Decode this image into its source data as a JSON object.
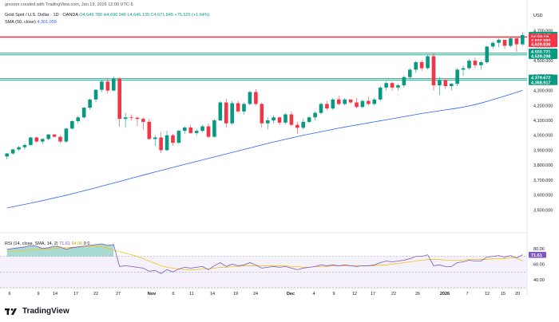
{
  "header": {
    "credit": "grezerx created with TradingView.com, Jan 19, 2026 12:00 UTC-5",
    "symbol": "Gold Spot / U.S. Dollar · 1D · OANDA",
    "ohlc": "O4,649.780 H4,690.940 L4,646.135 C4,671.845 +75.525 (+1.64%)",
    "sma_label": "SMA (50, close)",
    "sma_value": "4,301.059",
    "rsi_label": "RSI (14, close, SMA, 14, 2)",
    "rsi_value": "71.61",
    "rsi_sma_value": "64.06",
    "rsi_extra": "0  0",
    "currency": "USD"
  },
  "brand": {
    "name": "TradingView",
    "logo": "tv-logo-icon"
  },
  "chart_data": [
    {
      "type": "candlestick",
      "series": [
        {
          "name": "Gold Spot / U.S. Dollar",
          "candles": [
            [
              3858,
              3880,
              3840,
              3878
            ],
            [
              3878,
              3910,
              3870,
              3905
            ],
            [
              3905,
              3930,
              3895,
              3920
            ],
            [
              3920,
              3945,
              3905,
              3935
            ],
            [
              3935,
              3990,
              3930,
              3985
            ],
            [
              3985,
              3990,
              3950,
              3958
            ],
            [
              3958,
              3980,
              3940,
              3975
            ],
            [
              3975,
              4010,
              3965,
              4005
            ],
            [
              4005,
              4010,
              3985,
              3990
            ],
            [
              3990,
              4000,
              3950,
              3958
            ],
            [
              3958,
              4050,
              3950,
              4045
            ],
            [
              4045,
              4100,
              4040,
              4095
            ],
            [
              4095,
              4130,
              4080,
              4120
            ],
            [
              4120,
              4190,
              4110,
              4185
            ],
            [
              4185,
              4245,
              4170,
              4240
            ],
            [
              4240,
              4310,
              4220,
              4305
            ],
            [
              4305,
              4370,
              4290,
              4360
            ],
            [
              4360,
              4380,
              4280,
              4300
            ],
            [
              4300,
              4395,
              4295,
              4380
            ],
            [
              4380,
              4390,
              4060,
              4110
            ],
            [
              4110,
              4150,
              4050,
              4120
            ],
            [
              4120,
              4140,
              4100,
              4118
            ],
            [
              4118,
              4125,
              4060,
              4110
            ],
            [
              4110,
              4120,
              4040,
              4090
            ],
            [
              4090,
              4110,
              3970,
              3975
            ],
            [
              3975,
              4000,
              3930,
              3985
            ],
            [
              3985,
              4020,
              3880,
              3900
            ],
            [
              3900,
              4030,
              3895,
              4000
            ],
            [
              4000,
              4010,
              3930,
              3950
            ],
            [
              3950,
              4040,
              3940,
              4030
            ],
            [
              4030,
              4060,
              4010,
              4052
            ],
            [
              4052,
              4070,
              4010,
              4015
            ],
            [
              4015,
              4040,
              4000,
              4030
            ],
            [
              4030,
              4070,
              4020,
              4060
            ],
            [
              4060,
              4080,
              3980,
              3990
            ],
            [
              3990,
              4110,
              3985,
              4100
            ],
            [
              4100,
              4230,
              4095,
              4220
            ],
            [
              4220,
              4245,
              4050,
              4080
            ],
            [
              4080,
              4230,
              4070,
              4215
            ],
            [
              4215,
              4230,
              4150,
              4160
            ],
            [
              4160,
              4220,
              4140,
              4210
            ],
            [
              4210,
              4300,
              4200,
              4290
            ],
            [
              4290,
              4310,
              4200,
              4210
            ],
            [
              4210,
              4220,
              4050,
              4080
            ],
            [
              4080,
              4120,
              4040,
              4100
            ],
            [
              4100,
              4135,
              4080,
              4120
            ],
            [
              4120,
              4125,
              4070,
              4085
            ],
            [
              4085,
              4150,
              4075,
              4140
            ],
            [
              4140,
              4160,
              4060,
              4070
            ],
            [
              4070,
              4090,
              4010,
              4050
            ],
            [
              4050,
              4110,
              4040,
              4090
            ],
            [
              4090,
              4130,
              4080,
              4120
            ],
            [
              4120,
              4160,
              4100,
              4150
            ],
            [
              4150,
              4220,
              4140,
              4210
            ],
            [
              4210,
              4230,
              4170,
              4180
            ],
            [
              4180,
              4250,
              4170,
              4240
            ],
            [
              4240,
              4265,
              4200,
              4210
            ],
            [
              4210,
              4250,
              4200,
              4240
            ],
            [
              4240,
              4230,
              4210,
              4220
            ],
            [
              4220,
              4250,
              4180,
              4190
            ],
            [
              4190,
              4240,
              4180,
              4230
            ],
            [
              4230,
              4260,
              4200,
              4210
            ],
            [
              4210,
              4250,
              4200,
              4240
            ],
            [
              4240,
              4330,
              4230,
              4320
            ],
            [
              4320,
              4360,
              4300,
              4350
            ],
            [
              4350,
              4360,
              4300,
              4320
            ],
            [
              4320,
              4345,
              4300,
              4335
            ],
            [
              4335,
              4400,
              4320,
              4390
            ],
            [
              4390,
              4450,
              4380,
              4440
            ],
            [
              4440,
              4500,
              4420,
              4490
            ],
            [
              4490,
              4505,
              4430,
              4450
            ],
            [
              4450,
              4540,
              4440,
              4530
            ],
            [
              4530,
              4550,
              4300,
              4335
            ],
            [
              4335,
              4390,
              4270,
              4370
            ],
            [
              4370,
              4380,
              4310,
              4330
            ],
            [
              4330,
              4350,
              4300,
              4345
            ],
            [
              4345,
              4450,
              4330,
              4440
            ],
            [
              4440,
              4470,
              4400,
              4450
            ],
            [
              4450,
              4510,
              4440,
              4500
            ],
            [
              4500,
              4520,
              4450,
              4470
            ],
            [
              4470,
              4500,
              4440,
              4490
            ],
            [
              4490,
              4600,
              4480,
              4595
            ],
            [
              4595,
              4630,
              4580,
              4620
            ],
            [
              4620,
              4650,
              4590,
              4640
            ],
            [
              4640,
              4640,
              4580,
              4600
            ],
            [
              4600,
              4660,
              4590,
              4650
            ],
            [
              4650,
              4645,
              4560,
              4610
            ],
            [
              4610,
              4690,
              4600,
              4672
            ]
          ]
        },
        {
          "name": "SMA (50, close)",
          "points": [
            3513,
            3521,
            3529,
            3537,
            3545,
            3553,
            3562,
            3571,
            3580,
            3589,
            3598,
            3608,
            3618,
            3628,
            3638,
            3648,
            3659,
            3669,
            3680,
            3690,
            3701,
            3712,
            3722,
            3733,
            3743,
            3754,
            3764,
            3775,
            3785,
            3795,
            3805,
            3815,
            3825,
            3835,
            3845,
            3855,
            3865,
            3875,
            3885,
            3895,
            3905,
            3915,
            3925,
            3935,
            3945,
            3955,
            3964,
            3973,
            3982,
            3991,
            4000,
            4008,
            4016,
            4024,
            4032,
            4040,
            4048,
            4055,
            4062,
            4069,
            4076,
            4083,
            4090,
            4097,
            4104,
            4111,
            4118,
            4125,
            4132,
            4139,
            4146,
            4152,
            4158,
            4164,
            4170,
            4176,
            4182,
            4189,
            4197,
            4206,
            4216,
            4227,
            4239,
            4251,
            4263,
            4275,
            4288,
            4301
          ]
        }
      ],
      "x_tick_labels": [
        "6",
        "9",
        "14",
        "17",
        "22",
        "27",
        "Nov",
        "6",
        "11",
        "14",
        "19",
        "24",
        "Dec",
        "4",
        "9",
        "12",
        "17",
        "22",
        "26",
        "2026",
        "7",
        "12",
        "15",
        "20"
      ],
      "y_tick_labels": [
        "4,700.000",
        "4,600.000",
        "4,500.000",
        "4,400.000",
        "4,300.000",
        "4,200.000",
        "4,100.000",
        "4,000.000",
        "3,900.000",
        "3,800.000",
        "3,700.000",
        "3,600.000",
        "3,500.000"
      ],
      "ylim": [
        3400,
        4720
      ],
      "horizontal_levels": [
        {
          "value": 4659.19,
          "color": "#f23645"
        },
        {
          "value": 4550.721,
          "color": "#089981"
        },
        {
          "value": 4539.298,
          "color": "#089981"
        },
        {
          "value": 4379.672,
          "color": "#089981"
        },
        {
          "value": 4368.917,
          "color": "#089981"
        }
      ],
      "price_tags": [
        {
          "label": "4,671.845",
          "value": 4671.845,
          "color": "#089981"
        },
        {
          "label": "04:59:19",
          "value": 4659.19,
          "color": "#f23645"
        },
        {
          "label": "4,650.980",
          "value": 4635.0,
          "color": "#f23645"
        },
        {
          "label": "4,639.836",
          "value": 4610.0,
          "color": "#f23645"
        },
        {
          "label": "4,550.721",
          "value": 4560.0,
          "color": "#089981"
        },
        {
          "label": "4,539.298",
          "value": 4530.0,
          "color": "#089981"
        },
        {
          "label": "4,379.672",
          "value": 4385.0,
          "color": "#089981"
        },
        {
          "label": "4,368.917",
          "value": 4355.0,
          "color": "#089981"
        }
      ]
    },
    {
      "type": "line",
      "series": [
        {
          "name": "RSI",
          "points": [
            79,
            80,
            81,
            82,
            84,
            83,
            80,
            81,
            83,
            82,
            79,
            81,
            82,
            83,
            84,
            85,
            86,
            84,
            85,
            57,
            58,
            57,
            56,
            55,
            51,
            52,
            48,
            53,
            50,
            54,
            56,
            55,
            56,
            57,
            53,
            58,
            62,
            57,
            60,
            58,
            59,
            62,
            59,
            55,
            56,
            57,
            56,
            57,
            55,
            53,
            55,
            56,
            57,
            59,
            58,
            59,
            58,
            59,
            58,
            57,
            58,
            58,
            59,
            62,
            64,
            63,
            64,
            65,
            67,
            70,
            70,
            72,
            58,
            59,
            57,
            57,
            62,
            63,
            65,
            64,
            64,
            69,
            70,
            71,
            69,
            71,
            68,
            72
          ]
        },
        {
          "name": "RSI SMA",
          "points": [
            76,
            76.5,
            77,
            77.5,
            78,
            78.5,
            79,
            79.5,
            80,
            80.5,
            81,
            81.5,
            82,
            82.5,
            83,
            83,
            82.5,
            80,
            78,
            76,
            74,
            72,
            70,
            67,
            64,
            61,
            58,
            56,
            55,
            54,
            53,
            53,
            53,
            54,
            54,
            55,
            56,
            56,
            57,
            57,
            58,
            58,
            58,
            58,
            58,
            58,
            58,
            58,
            57,
            57,
            56,
            56,
            57,
            57,
            57,
            58,
            58,
            58,
            58,
            58,
            58,
            58,
            58,
            59,
            59,
            60,
            61,
            62,
            63,
            64,
            65,
            66,
            66,
            66,
            65,
            65,
            65,
            65,
            66,
            66,
            66,
            66,
            67,
            67,
            67,
            68,
            68,
            64
          ]
        }
      ],
      "y_tick_labels": [
        "80.00",
        "60.00",
        "40.00"
      ],
      "ylim": [
        34,
        92
      ],
      "bands": {
        "upper": 70,
        "middle": 50,
        "lower": 30
      }
    }
  ],
  "colors": {
    "up": "#089981",
    "down": "#f23645",
    "sma": "#2962ff",
    "rsi": "#7e57c2",
    "rsi_sma": "#f5c518",
    "band": "#ede7f6"
  }
}
